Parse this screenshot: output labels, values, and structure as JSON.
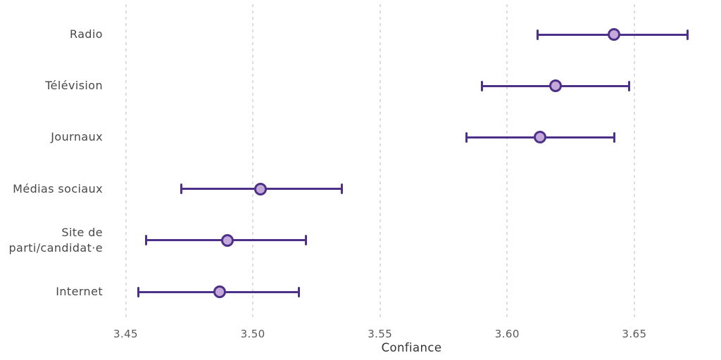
{
  "chart_data": {
    "type": "scatter",
    "subtype": "horizontal-dot-plot-with-error-bars",
    "title": "",
    "xlabel": "Confiance",
    "ylabel": "",
    "categories": [
      "Radio",
      "Télévision",
      "Journaux",
      "Médias sociaux",
      "Site de parti/candidat·e",
      "Internet"
    ],
    "values": [
      3.642,
      3.619,
      3.613,
      3.503,
      3.49,
      3.487
    ],
    "ci_low": [
      3.612,
      3.59,
      3.584,
      3.472,
      3.458,
      3.455
    ],
    "ci_high": [
      3.671,
      3.648,
      3.642,
      3.535,
      3.521,
      3.518
    ],
    "x_ticks": [
      "3.45",
      "3.50",
      "3.55",
      "3.60",
      "3.65"
    ],
    "x_tick_values": [
      3.45,
      3.5,
      3.55,
      3.6,
      3.65
    ],
    "xlim": [
      3.443,
      3.681
    ],
    "grid": "vertical-dashed",
    "legend": "none",
    "colors": {
      "errorbar": "#4d3189",
      "marker_fill": "#c4a8da",
      "marker_edge": "#4d3189",
      "gridline": "#dcdcdc",
      "tick_label": "#595959",
      "category_label": "#484848",
      "axis_label": "#333333",
      "background": "#ffffff"
    }
  }
}
